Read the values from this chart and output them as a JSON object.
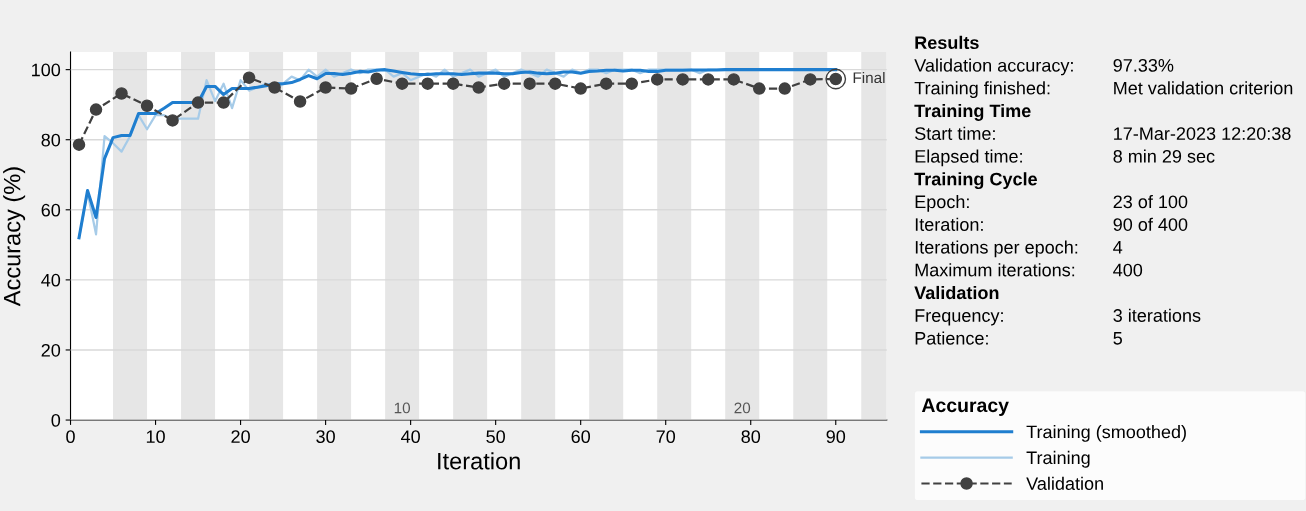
{
  "chart_data": [
    {
      "type": "line",
      "xlabel": "Iteration",
      "ylabel": "Accuracy (%)",
      "xlim": [
        0,
        96
      ],
      "ylim": [
        0,
        105
      ],
      "xticks": [
        0,
        10,
        20,
        30,
        40,
        50,
        60,
        70,
        80,
        90
      ],
      "yticks": [
        0,
        20,
        40,
        60,
        80,
        100
      ],
      "grid": "y",
      "legend": "bottom right",
      "legend_title": "Accuracy",
      "series": [
        {
          "name": "Training (smoothed)",
          "color": "#1f7ecf",
          "marker": "none",
          "line_style": "solid",
          "x": [
            1,
            2,
            3,
            4,
            5,
            6,
            7,
            8,
            9,
            10,
            11,
            12,
            13,
            14,
            15,
            16,
            17,
            18,
            19,
            20,
            21,
            22,
            23,
            24,
            25,
            26,
            27,
            28,
            29,
            30,
            31,
            32,
            33,
            34,
            35,
            36,
            37,
            38,
            39,
            40,
            41,
            42,
            43,
            44,
            45,
            46,
            47,
            48,
            49,
            50,
            51,
            52,
            53,
            54,
            55,
            56,
            57,
            58,
            59,
            60,
            61,
            62,
            63,
            64,
            65,
            66,
            67,
            68,
            69,
            70,
            71,
            72,
            73,
            74,
            75,
            76,
            77,
            78,
            79,
            80,
            81,
            82,
            83,
            84,
            85,
            86,
            87,
            88,
            89,
            90
          ],
          "values": [
            52,
            65.5,
            57.8,
            74.6,
            80.6,
            81.2,
            81.2,
            87.5,
            87.5,
            87.5,
            89,
            90.6,
            90.6,
            90.6,
            90.6,
            95.2,
            95.2,
            92.9,
            94.6,
            94.6,
            94.6,
            95,
            95.4,
            96,
            96,
            96.3,
            97.2,
            98.3,
            97.4,
            98.9,
            98.9,
            98.6,
            99,
            99.5,
            99.3,
            99.8,
            100,
            99.6,
            99.2,
            98.8,
            98.6,
            98.6,
            98.8,
            98.8,
            98.8,
            98.6,
            98.8,
            99,
            99,
            99,
            98.8,
            98.8,
            99.2,
            99.3,
            99,
            98.8,
            99,
            99.3,
            99.3,
            99,
            99.5,
            99.6,
            99.8,
            99.8,
            99.6,
            99.8,
            99.8,
            99.5,
            99.5,
            99.8,
            99.8,
            99.8,
            99.9,
            99.9,
            99.9,
            99.9,
            100,
            100,
            100,
            100,
            100,
            100,
            100,
            100,
            100,
            100,
            100,
            100,
            100,
            100
          ]
        },
        {
          "name": "Training",
          "color": "#a6cbe8",
          "marker": "none",
          "line_style": "solid",
          "x": [
            1,
            2,
            3,
            4,
            5,
            6,
            7,
            8,
            9,
            10,
            11,
            12,
            13,
            14,
            15,
            16,
            17,
            18,
            19,
            20,
            21,
            22,
            23,
            24,
            25,
            26,
            27,
            28,
            29,
            30,
            31,
            32,
            33,
            34,
            35,
            36,
            37,
            38,
            39,
            40,
            41,
            42,
            43,
            44,
            45,
            46,
            47,
            48,
            49,
            50,
            51,
            52,
            53,
            54,
            55,
            56,
            57,
            58,
            59,
            60,
            61,
            62,
            63,
            64,
            65,
            66,
            67,
            68,
            69,
            70,
            71,
            72,
            73,
            74,
            75,
            76,
            77,
            78,
            79,
            80,
            81,
            82,
            83,
            84,
            85,
            86,
            87,
            88,
            89,
            90
          ],
          "values": [
            52,
            65,
            53,
            81,
            79,
            76.6,
            81,
            87,
            83,
            87,
            87,
            86,
            86,
            86,
            86,
            97,
            91,
            96,
            89,
            97,
            94,
            95,
            96,
            94,
            96,
            98,
            97,
            100,
            98,
            100,
            98,
            99,
            100,
            99,
            100,
            100,
            100,
            98,
            99,
            97,
            98,
            99,
            98,
            100,
            98,
            99,
            100,
            98,
            99,
            100,
            98,
            99,
            100,
            99,
            98,
            100,
            99,
            98,
            100,
            99,
            100,
            100,
            99,
            100,
            100,
            100,
            99,
            100,
            100,
            100,
            100,
            100,
            100,
            99,
            100,
            100,
            100,
            100,
            100,
            100,
            100,
            100,
            100,
            100,
            100,
            100,
            100,
            100,
            100,
            100
          ]
        },
        {
          "name": "Validation",
          "color": "#404040",
          "marker": "circle",
          "line_style": "dashed",
          "x": [
            1,
            3,
            6,
            9,
            12,
            15,
            18,
            21,
            24,
            27,
            30,
            33,
            36,
            39,
            42,
            45,
            48,
            51,
            54,
            57,
            60,
            63,
            66,
            69,
            72,
            75,
            78,
            81,
            84,
            87,
            90
          ],
          "values": [
            78.6,
            88.6,
            93.2,
            89.7,
            85.5,
            90.6,
            90.6,
            97.7,
            94.9,
            90.9,
            94.9,
            94.6,
            97.4,
            96,
            96,
            96,
            94.9,
            96,
            96,
            96,
            94.6,
            96,
            96,
            97.2,
            97.2,
            97.2,
            97.2,
            94.6,
            94.6,
            97.2,
            97.33
          ]
        }
      ],
      "bands": [
        {
          "axis": "x",
          "from": 5,
          "to": 9,
          "color": "#e6e6e6"
        },
        {
          "axis": "x",
          "from": 13,
          "to": 17,
          "color": "#e6e6e6"
        },
        {
          "axis": "x",
          "from": 21,
          "to": 25,
          "color": "#e6e6e6"
        },
        {
          "axis": "x",
          "from": 29,
          "to": 33,
          "color": "#e6e6e6"
        },
        {
          "axis": "x",
          "from": 37,
          "to": 41,
          "color": "#e6e6e6",
          "label": "10"
        },
        {
          "axis": "x",
          "from": 45,
          "to": 49,
          "color": "#e6e6e6"
        },
        {
          "axis": "x",
          "from": 53,
          "to": 57,
          "color": "#e6e6e6"
        },
        {
          "axis": "x",
          "from": 61,
          "to": 65,
          "color": "#e6e6e6"
        },
        {
          "axis": "x",
          "from": 69,
          "to": 73,
          "color": "#e6e6e6"
        },
        {
          "axis": "x",
          "from": 77,
          "to": 81,
          "color": "#e6e6e6",
          "label": "20"
        },
        {
          "axis": "x",
          "from": 85,
          "to": 89,
          "color": "#e6e6e6"
        },
        {
          "axis": "x",
          "from": 93,
          "to": 96,
          "color": "#e6e6e6"
        }
      ],
      "annotations": [
        {
          "text": "Final",
          "x": 90,
          "y": 97.33
        }
      ]
    },
    {
      "type": "other",
      "annotations": [
        "Results",
        "Validation accuracy:\t97.33%",
        "Training finished:\tMet validation criterion",
        "Training Time",
        "Start time:\t17-Mar-2023 12:20:38",
        "Elapsed time:\t8 min 29 sec",
        "Training Cycle",
        "Epoch:\t23 of 100",
        "Iteration:\t90 of 400",
        "Iterations per epoch:\t4",
        "Maximum iterations:\t400",
        "Validation",
        "Frequency:\t3 iterations",
        "Patience:\t5"
      ]
    }
  ]
}
